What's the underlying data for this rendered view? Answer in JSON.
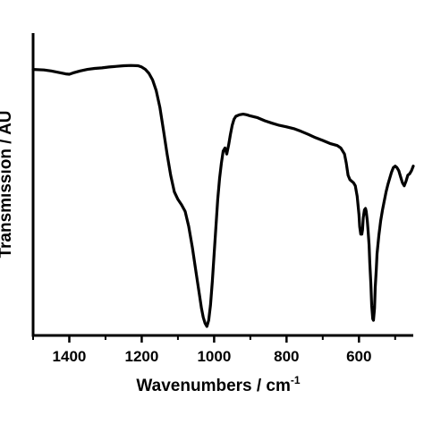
{
  "chart_data": {
    "type": "line",
    "xlabel": "Wavenumbers / cm",
    "xlabel_superscript": "-1",
    "ylabel": "Transmission / AU",
    "xlim": [
      1500,
      450
    ],
    "x_reversed": true,
    "ylim": [
      0,
      100
    ],
    "x_ticks": [
      1400,
      1200,
      1000,
      800,
      600
    ],
    "y_ticks_labeled": false,
    "grid": false,
    "series": [
      {
        "color": "#000000",
        "x": [
          1500,
          1470,
          1450,
          1430,
          1410,
          1400,
          1390,
          1370,
          1350,
          1330,
          1310,
          1290,
          1270,
          1250,
          1230,
          1210,
          1200,
          1190,
          1180,
          1170,
          1160,
          1150,
          1140,
          1130,
          1120,
          1110,
          1100,
          1090,
          1080,
          1070,
          1060,
          1050,
          1040,
          1035,
          1030,
          1025,
          1020,
          1015,
          1010,
          1005,
          1000,
          995,
          990,
          985,
          980,
          975,
          970,
          965,
          960,
          955,
          950,
          945,
          940,
          930,
          920,
          910,
          900,
          880,
          860,
          840,
          820,
          800,
          780,
          760,
          740,
          720,
          700,
          680,
          660,
          650,
          640,
          635,
          630,
          625,
          620,
          615,
          610,
          605,
          600,
          598,
          595,
          592,
          590,
          588,
          585,
          582,
          580,
          577,
          575,
          572,
          570,
          567,
          565,
          562,
          560,
          557,
          555,
          552,
          550,
          545,
          540,
          535,
          530,
          525,
          520,
          515,
          510,
          505,
          500,
          495,
          490,
          485,
          480,
          475,
          470,
          465,
          460,
          455,
          450
        ],
        "y": [
          88.0,
          87.8,
          87.5,
          87.0,
          86.5,
          86.4,
          86.8,
          87.5,
          88.0,
          88.3,
          88.5,
          88.8,
          89.0,
          89.2,
          89.3,
          89.2,
          88.8,
          88.0,
          86.7,
          84.5,
          81.0,
          75.5,
          68.0,
          60.0,
          53.0,
          47.5,
          45.0,
          43.2,
          41.0,
          36.0,
          29.0,
          21.0,
          13.0,
          9.0,
          6.0,
          4.0,
          3.0,
          5.0,
          10.0,
          18.0,
          27.0,
          36.0,
          45.0,
          52.0,
          57.0,
          61.0,
          62.0,
          60.0,
          63.0,
          66.5,
          69.5,
          71.5,
          72.5,
          73.0,
          73.2,
          73.0,
          72.6,
          72.0,
          71.0,
          70.2,
          69.5,
          69.0,
          68.4,
          67.5,
          66.5,
          65.4,
          64.5,
          63.5,
          62.8,
          62.0,
          60.0,
          57.0,
          53.0,
          51.5,
          51.0,
          50.5,
          49.5,
          46.0,
          40.0,
          36.0,
          33.5,
          33.5,
          35.0,
          39.0,
          41.5,
          42.0,
          41.0,
          38.0,
          35.0,
          30.0,
          24.0,
          17.0,
          10.0,
          5.5,
          5.0,
          9.0,
          16.0,
          22.0,
          27.0,
          33.0,
          38.0,
          41.5,
          44.5,
          47.5,
          50.0,
          52.0,
          54.0,
          55.5,
          56.0,
          55.5,
          54.5,
          52.5,
          50.5,
          49.5,
          51.0,
          53.0,
          53.5,
          54.5,
          56.0
        ]
      }
    ]
  }
}
